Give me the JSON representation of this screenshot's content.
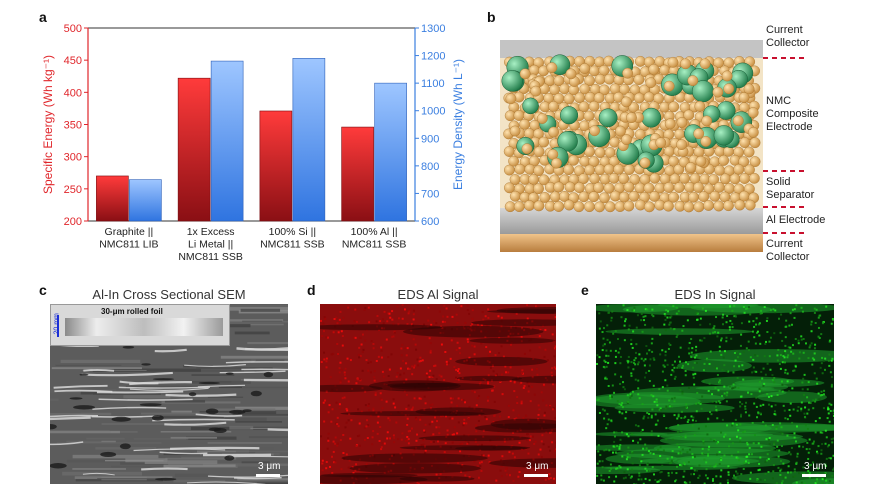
{
  "panels": {
    "a": "a",
    "b": "b",
    "c": "c",
    "d": "d",
    "e": "e"
  },
  "chart_data": {
    "type": "bar",
    "categories": [
      [
        "Graphite ||",
        "NMC811 LIB"
      ],
      [
        "1x Excess",
        "Li Metal ||",
        "NMC811 SSB"
      ],
      [
        "100% Si ||",
        "NMC811 SSB"
      ],
      [
        "100% Al ||",
        "NMC811 SSB"
      ]
    ],
    "series": [
      {
        "name": "Specific Energy",
        "axis": "left",
        "color": "#e0262b",
        "values": [
          270,
          422,
          371,
          346
        ]
      },
      {
        "name": "Energy Density",
        "axis": "right",
        "color": "#3b7fe0",
        "values": [
          750,
          1180,
          1190,
          1100
        ]
      }
    ],
    "ylabel_left": "Specific Energy (Wh kg⁻¹)",
    "ylabel_right": "Energy Density (Wh L⁻¹)",
    "ylim_left": [
      200,
      500
    ],
    "ylim_right": [
      600,
      1300
    ],
    "yticks_left": [
      200,
      250,
      300,
      350,
      400,
      450,
      500
    ],
    "yticks_right": [
      600,
      700,
      800,
      900,
      1000,
      1100,
      1200,
      1300
    ],
    "left_axis_color": "#e0262b",
    "right_axis_color": "#3b7fe0"
  },
  "schematic": {
    "labels": {
      "current_collector_top": [
        "Current",
        "Collector"
      ],
      "nmc": [
        "NMC",
        "Composite",
        "Electrode"
      ],
      "separator": [
        "Solid",
        "Separator"
      ],
      "al_electrode": [
        "Al Electrode"
      ],
      "current_collector_bottom": [
        "Current",
        "Collector"
      ]
    },
    "colors": {
      "collector_gray": "#bfbfbf",
      "particle_tan": "#e8b86a",
      "particle_green": "#3fae72",
      "al_gray": "#a9a9a9",
      "copper": "#d8a86e",
      "divider": "#c8102e"
    }
  },
  "micrographs": {
    "c": {
      "title": "Al-In Cross Sectional SEM",
      "scale": "3 μm",
      "inset_label": "30-μm rolled foil",
      "inset_scale": "20 mm"
    },
    "d": {
      "title": "EDS Al Signal",
      "scale": "3 μm"
    },
    "e": {
      "title": "EDS In Signal",
      "scale": "3 μm"
    }
  }
}
